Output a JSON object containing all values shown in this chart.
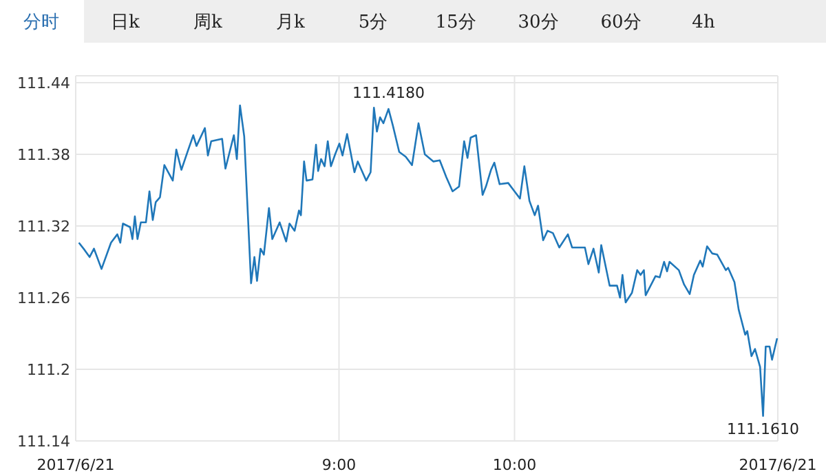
{
  "chart_data": {
    "type": "line",
    "color": "#1f77b9",
    "grid": true,
    "marker": "none",
    "line_style": "solid",
    "xlim": [
      7.5,
      11.5
    ],
    "xticks": [
      {
        "value": 7.5,
        "label": "2017/6/21"
      },
      {
        "value": 9,
        "label": "9:00"
      },
      {
        "value": 10,
        "label": "10:00"
      },
      {
        "value": 11.5,
        "label": "2017/6/21"
      }
    ],
    "ylim": [
      111.14,
      111.44
    ],
    "yticks": [
      111.14,
      111.2,
      111.26,
      111.32,
      111.38,
      111.44
    ],
    "annotations": [
      "分时",
      "日k",
      "周k",
      "月k",
      "5分",
      "15分",
      "30分",
      "60分",
      "4h",
      {
        "text": "111.4180",
        "x": 9.282,
        "y": 111.418
      },
      {
        "text": "111.1610",
        "x": 11.416,
        "y": 111.161
      }
    ],
    "x": [
      7.518,
      7.55,
      7.579,
      7.604,
      7.647,
      7.701,
      7.737,
      7.754,
      7.769,
      7.81,
      7.823,
      7.837,
      7.852,
      7.871,
      7.9,
      7.92,
      7.939,
      7.956,
      7.98,
      8.005,
      8.053,
      8.073,
      8.102,
      8.139,
      8.17,
      8.188,
      8.236,
      8.253,
      8.272,
      8.334,
      8.353,
      8.401,
      8.418,
      8.436,
      8.46,
      8.499,
      8.518,
      8.533,
      8.553,
      8.572,
      8.601,
      8.62,
      8.662,
      8.699,
      8.718,
      8.747,
      8.772,
      8.783,
      8.801,
      8.815,
      8.849,
      8.869,
      8.881,
      8.898,
      8.918,
      8.936,
      8.954,
      8.978,
      9.002,
      9.02,
      9.046,
      9.088,
      9.107,
      9.155,
      9.18,
      9.199,
      9.216,
      9.234,
      9.253,
      9.282,
      9.307,
      9.343,
      9.38,
      9.416,
      9.453,
      9.489,
      9.538,
      9.574,
      9.611,
      9.647,
      9.684,
      9.713,
      9.732,
      9.75,
      9.781,
      9.818,
      9.837,
      9.866,
      9.885,
      9.915,
      9.964,
      10.0,
      10.031,
      10.056,
      10.085,
      10.115,
      10.134,
      10.163,
      10.188,
      10.219,
      10.255,
      10.304,
      10.328,
      10.401,
      10.421,
      10.45,
      10.48,
      10.494,
      10.542,
      10.584,
      10.601,
      10.615,
      10.633,
      10.669,
      10.699,
      10.718,
      10.737,
      10.747,
      10.803,
      10.827,
      10.852,
      10.869,
      10.883,
      10.936,
      10.966,
      10.998,
      11.022,
      11.058,
      11.072,
      11.097,
      11.126,
      11.155,
      11.204,
      11.217,
      11.253,
      11.277,
      11.314,
      11.326,
      11.35,
      11.37,
      11.399,
      11.416,
      11.431,
      11.453,
      11.467,
      11.496
    ],
    "values": [
      111.306,
      111.3,
      111.294,
      111.301,
      111.284,
      111.306,
      111.313,
      111.306,
      111.322,
      111.319,
      111.309,
      111.328,
      111.309,
      111.323,
      111.323,
      111.349,
      111.325,
      111.34,
      111.344,
      111.371,
      111.358,
      111.384,
      111.367,
      111.383,
      111.396,
      111.387,
      111.402,
      111.379,
      111.391,
      111.393,
      111.368,
      111.396,
      111.376,
      111.421,
      111.395,
      111.272,
      111.294,
      111.274,
      111.301,
      111.296,
      111.335,
      111.309,
      111.323,
      111.307,
      111.322,
      111.316,
      111.333,
      111.329,
      111.374,
      111.358,
      111.359,
      111.388,
      111.366,
      111.376,
      111.37,
      111.391,
      111.37,
      111.38,
      111.389,
      111.379,
      111.397,
      111.365,
      111.374,
      111.358,
      111.365,
      111.419,
      111.399,
      111.411,
      111.406,
      111.418,
      111.404,
      111.382,
      111.378,
      111.371,
      111.406,
      111.38,
      111.374,
      111.375,
      111.361,
      111.349,
      111.353,
      111.391,
      111.377,
      111.394,
      111.396,
      111.346,
      111.353,
      111.367,
      111.373,
      111.355,
      111.356,
      111.349,
      111.343,
      111.37,
      111.341,
      111.329,
      111.337,
      111.308,
      111.316,
      111.314,
      111.302,
      111.313,
      111.302,
      111.302,
      111.288,
      111.301,
      111.281,
      111.304,
      111.27,
      111.27,
      111.26,
      111.279,
      111.256,
      111.264,
      111.283,
      111.279,
      111.283,
      111.262,
      111.278,
      111.277,
      111.29,
      111.282,
      111.29,
      111.283,
      111.271,
      111.263,
      111.279,
      111.291,
      111.286,
      111.303,
      111.297,
      111.296,
      111.283,
      111.285,
      111.273,
      111.25,
      111.229,
      111.232,
      111.211,
      111.217,
      111.202,
      111.161,
      111.219,
      111.219,
      111.208,
      111.226
    ]
  }
}
